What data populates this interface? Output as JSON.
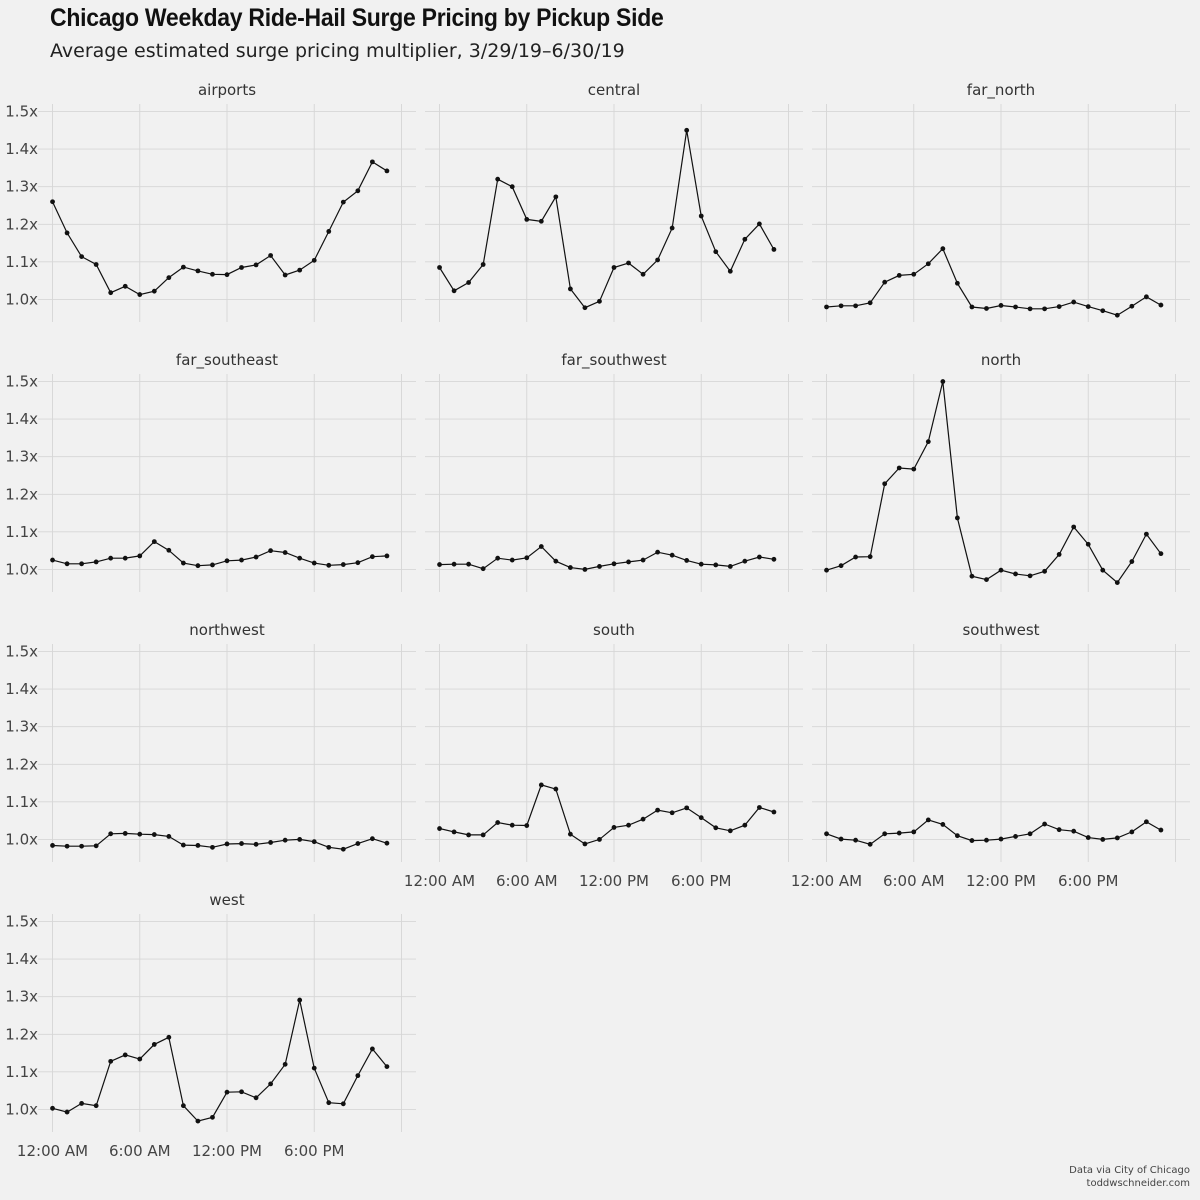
{
  "chart_data": {
    "type": "line",
    "title": "Chicago Weekday Ride-Hail Surge Pricing by Pickup Side",
    "subtitle": "Average estimated surge pricing multiplier, 3/29/19–6/30/19",
    "caption_lines": [
      "Data via City of Chicago",
      "toddwschneider.com"
    ],
    "xlabel": "",
    "ylabel": "",
    "x_unit": "hour of day",
    "xlim": [
      -1,
      25
    ],
    "x_ticks": [
      {
        "value": 0,
        "label": "12:00 AM"
      },
      {
        "value": 6,
        "label": "6:00 AM"
      },
      {
        "value": 12,
        "label": "12:00 PM"
      },
      {
        "value": 18,
        "label": "6:00 PM"
      }
    ],
    "ylim": [
      0.94,
      1.52
    ],
    "y_ticks": [
      {
        "value": 1.0,
        "label": "1.0x"
      },
      {
        "value": 1.1,
        "label": "1.1x"
      },
      {
        "value": 1.2,
        "label": "1.2x"
      },
      {
        "value": 1.3,
        "label": "1.3x"
      },
      {
        "value": 1.4,
        "label": "1.4x"
      },
      {
        "value": 1.5,
        "label": "1.5x"
      }
    ],
    "x": [
      0,
      1,
      2,
      3,
      4,
      5,
      6,
      7,
      8,
      9,
      10,
      11,
      12,
      13,
      14,
      15,
      16,
      17,
      18,
      19,
      20,
      21,
      22,
      23
    ],
    "series": [
      {
        "name": "airports",
        "values": [
          1.26,
          1.177,
          1.114,
          1.093,
          1.018,
          1.035,
          1.013,
          1.022,
          1.058,
          1.086,
          1.076,
          1.067,
          1.066,
          1.085,
          1.092,
          1.117,
          1.065,
          1.078,
          1.104,
          1.181,
          1.259,
          1.289,
          1.366,
          1.342
        ]
      },
      {
        "name": "central",
        "values": [
          1.085,
          1.023,
          1.045,
          1.093,
          1.32,
          1.3,
          1.213,
          1.208,
          1.273,
          1.028,
          0.978,
          0.995,
          1.085,
          1.097,
          1.067,
          1.105,
          1.19,
          1.45,
          1.222,
          1.127,
          1.075,
          1.16,
          1.201,
          1.133
        ]
      },
      {
        "name": "far_north",
        "values": [
          0.98,
          0.983,
          0.983,
          0.991,
          1.046,
          1.064,
          1.067,
          1.095,
          1.135,
          1.043,
          0.98,
          0.976,
          0.984,
          0.98,
          0.975,
          0.975,
          0.981,
          0.993,
          0.981,
          0.97,
          0.958,
          0.982,
          1.007,
          0.985
        ]
      },
      {
        "name": "far_southeast",
        "values": [
          1.025,
          1.015,
          1.015,
          1.02,
          1.03,
          1.03,
          1.036,
          1.074,
          1.051,
          1.017,
          1.01,
          1.012,
          1.023,
          1.025,
          1.033,
          1.05,
          1.045,
          1.03,
          1.017,
          1.011,
          1.013,
          1.018,
          1.034,
          1.036
        ]
      },
      {
        "name": "far_southwest",
        "values": [
          1.013,
          1.014,
          1.014,
          1.002,
          1.03,
          1.025,
          1.031,
          1.061,
          1.022,
          1.005,
          1.0,
          1.008,
          1.015,
          1.02,
          1.025,
          1.046,
          1.038,
          1.024,
          1.014,
          1.012,
          1.008,
          1.022,
          1.033,
          1.027
        ]
      },
      {
        "name": "north",
        "values": [
          0.998,
          1.01,
          1.033,
          1.034,
          1.228,
          1.27,
          1.267,
          1.34,
          1.5,
          1.137,
          0.982,
          0.973,
          0.998,
          0.988,
          0.983,
          0.995,
          1.04,
          1.113,
          1.067,
          0.998,
          0.965,
          1.021,
          1.094,
          1.042
        ]
      },
      {
        "name": "northwest",
        "values": [
          0.984,
          0.982,
          0.982,
          0.983,
          1.015,
          1.016,
          1.014,
          1.013,
          1.008,
          0.985,
          0.984,
          0.979,
          0.988,
          0.989,
          0.987,
          0.992,
          0.998,
          1.0,
          0.994,
          0.979,
          0.974,
          0.989,
          1.002,
          0.99
        ]
      },
      {
        "name": "south",
        "values": [
          1.029,
          1.02,
          1.012,
          1.012,
          1.045,
          1.038,
          1.037,
          1.145,
          1.134,
          1.014,
          0.988,
          1.0,
          1.032,
          1.038,
          1.054,
          1.078,
          1.071,
          1.084,
          1.058,
          1.031,
          1.023,
          1.038,
          1.085,
          1.073
        ]
      },
      {
        "name": "southwest",
        "values": [
          1.015,
          1.001,
          0.998,
          0.987,
          1.015,
          1.017,
          1.02,
          1.052,
          1.04,
          1.01,
          0.997,
          0.998,
          1.001,
          1.008,
          1.015,
          1.041,
          1.026,
          1.022,
          1.005,
          1.0,
          1.004,
          1.02,
          1.047,
          1.025
        ]
      },
      {
        "name": "west",
        "values": [
          1.003,
          0.993,
          1.016,
          1.01,
          1.128,
          1.145,
          1.134,
          1.173,
          1.192,
          1.01,
          0.969,
          0.979,
          1.046,
          1.047,
          1.031,
          1.068,
          1.12,
          1.291,
          1.11,
          1.018,
          1.015,
          1.09,
          1.161,
          1.114
        ]
      }
    ]
  }
}
